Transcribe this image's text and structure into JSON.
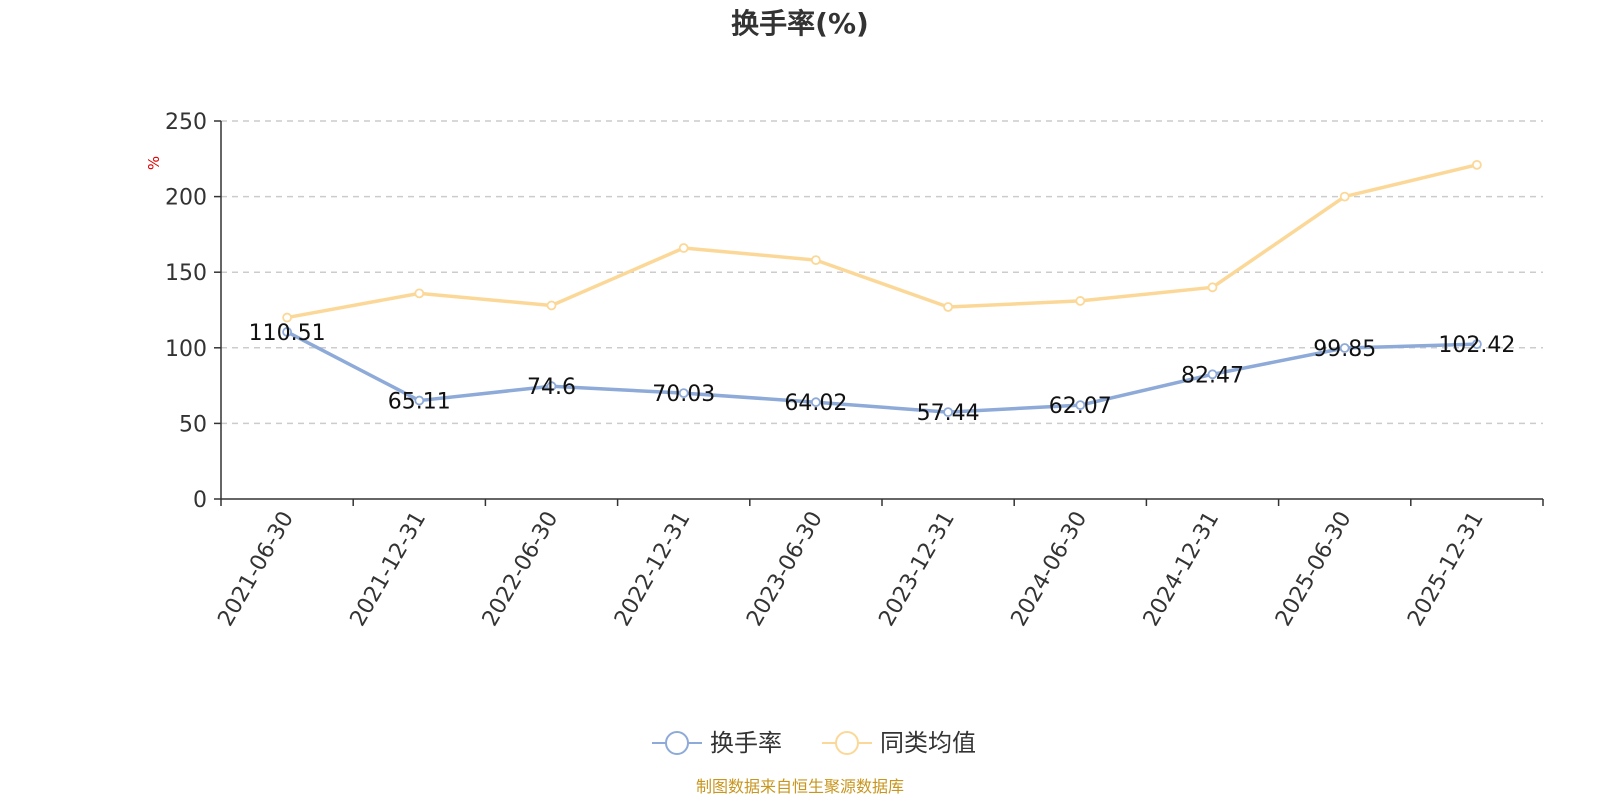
{
  "chart_data": {
    "type": "line",
    "title": "换手率(%)",
    "ylabel": "%",
    "xlabel": "",
    "ylim": [
      0,
      250
    ],
    "yticks": [
      0,
      50,
      100,
      150,
      200,
      250
    ],
    "grid": true,
    "legend_position": "bottom-center",
    "categories": [
      "2021-06-30",
      "2021-12-31",
      "2022-06-30",
      "2022-12-31",
      "2023-06-30",
      "2023-12-31",
      "2024-06-30",
      "2024-12-31",
      "2025-06-30",
      "2025-12-31"
    ],
    "series": [
      {
        "name": "换手率",
        "color": "#8eaad8",
        "values": [
          110.51,
          65.11,
          74.6,
          70.03,
          64.02,
          57.44,
          62.07,
          82.47,
          99.85,
          102.42
        ],
        "labels": [
          "110.51",
          "65.11",
          "74.6",
          "70.03",
          "64.02",
          "57.44",
          "62.07",
          "82.47",
          "99.85",
          "102.42"
        ]
      },
      {
        "name": "同类均值",
        "color": "#fbd898",
        "values": [
          120,
          136,
          128,
          166,
          158,
          127,
          131,
          140,
          200,
          221
        ]
      }
    ],
    "source": "制图数据来自恒生聚源数据库"
  }
}
